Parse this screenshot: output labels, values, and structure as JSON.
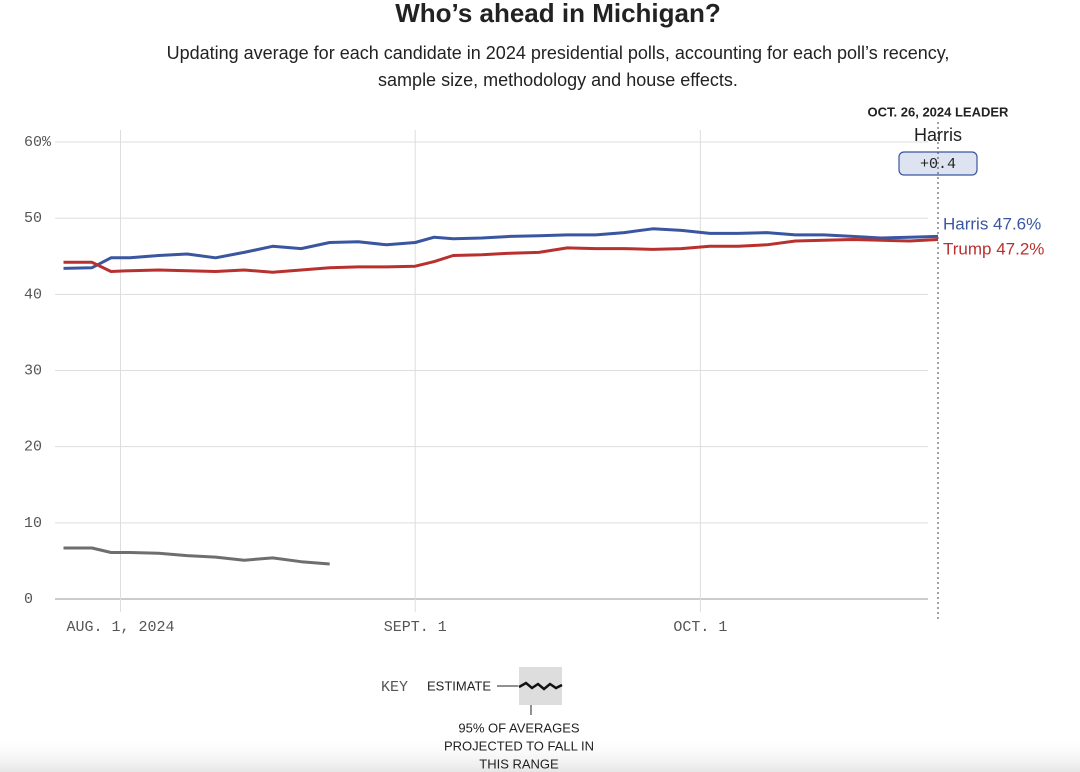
{
  "chart_data": {
    "type": "line",
    "title": "Who’s ahead in Michigan?",
    "subtitle": [
      "Updating average for each candidate in 2024 presidential polls, accounting for each poll’s recency,",
      "sample size, methodology and house effects."
    ],
    "x": [
      "2024-07-26",
      "2024-07-29",
      "2024-07-31",
      "2024-08-02",
      "2024-08-05",
      "2024-08-08",
      "2024-08-11",
      "2024-08-14",
      "2024-08-17",
      "2024-08-20",
      "2024-08-23",
      "2024-08-26",
      "2024-08-29",
      "2024-09-01",
      "2024-09-03",
      "2024-09-05",
      "2024-09-08",
      "2024-09-11",
      "2024-09-14",
      "2024-09-17",
      "2024-09-20",
      "2024-09-23",
      "2024-09-26",
      "2024-09-29",
      "2024-10-02",
      "2024-10-05",
      "2024-10-08",
      "2024-10-11",
      "2024-10-14",
      "2024-10-17",
      "2024-10-20",
      "2024-10-23",
      "2024-10-26"
    ],
    "series": [
      {
        "name": "Harris",
        "color": "#3a56a0",
        "end_label": "Harris 47.6%",
        "values": [
          43.4,
          43.5,
          44.8,
          44.8,
          45.1,
          45.3,
          44.8,
          45.5,
          46.3,
          46.0,
          46.8,
          46.9,
          46.5,
          46.8,
          47.5,
          47.3,
          47.4,
          47.6,
          47.7,
          47.8,
          47.8,
          48.1,
          48.6,
          48.4,
          48.0,
          48.0,
          48.1,
          47.8,
          47.8,
          47.6,
          47.4,
          47.5,
          47.6
        ]
      },
      {
        "name": "Trump",
        "color": "#b8312f",
        "end_label": "Trump 47.2%",
        "values": [
          44.2,
          44.2,
          43.0,
          43.1,
          43.2,
          43.1,
          43.0,
          43.2,
          42.9,
          43.2,
          43.5,
          43.6,
          43.6,
          43.7,
          44.3,
          45.1,
          45.2,
          45.4,
          45.5,
          46.1,
          46.0,
          46.0,
          45.9,
          46.0,
          46.3,
          46.3,
          46.5,
          47.0,
          47.1,
          47.2,
          47.1,
          47.0,
          47.2
        ]
      },
      {
        "color": "#6e6e6e",
        "values": [
          6.7,
          6.7,
          6.1,
          6.1,
          6.0,
          5.7,
          5.5,
          5.1,
          5.4,
          4.9,
          4.6,
          null,
          null,
          null,
          null,
          null,
          null,
          null,
          null,
          null,
          null,
          null,
          null,
          null,
          null,
          null,
          null,
          null,
          null,
          null,
          null,
          null,
          null
        ]
      }
    ],
    "xlim": [
      "2024-07-25",
      "2024-10-26"
    ],
    "xticks": [
      {
        "value": "2024-08-01",
        "label": "AUG. 1, 2024"
      },
      {
        "value": "2024-09-01",
        "label": "SEPT. 1"
      },
      {
        "value": "2024-10-01",
        "label": "OCT. 1"
      }
    ],
    "ylim": [
      0,
      60
    ],
    "yticks": [
      0,
      10,
      20,
      30,
      40,
      50,
      {
        "value": 60,
        "label": "60%"
      }
    ],
    "grid": true,
    "leader": {
      "title": "OCT. 26, 2024 LEADER",
      "name": "Harris",
      "margin": "+0.4"
    },
    "key": {
      "label": "KEY",
      "estimate": "ESTIMATE",
      "range": [
        "95% OF AVERAGES",
        "PROJECTED TO FALL IN",
        "THIS RANGE"
      ]
    }
  }
}
